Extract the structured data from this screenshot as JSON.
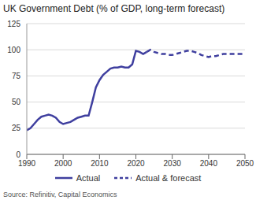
{
  "chart_data": {
    "type": "line",
    "title": "UK Government Debt (% of GDP, long-term forecast)",
    "source": "Source: Refinitiv, Capital Economics",
    "x": [
      1990,
      1991,
      1992,
      1993,
      1994,
      1995,
      1996,
      1997,
      1998,
      1999,
      2000,
      2001,
      2002,
      2003,
      2004,
      2005,
      2006,
      2007,
      2008,
      2009,
      2010,
      2011,
      2012,
      2013,
      2014,
      2015,
      2016,
      2017,
      2018,
      2019,
      2020,
      2021,
      2022,
      2023,
      2024,
      2025,
      2026,
      2027,
      2028,
      2029,
      2030,
      2031,
      2032,
      2033,
      2034,
      2035,
      2036,
      2037,
      2038,
      2039,
      2040,
      2041,
      2042,
      2043,
      2044,
      2045,
      2046,
      2047,
      2048,
      2049,
      2050
    ],
    "series": [
      {
        "name": "Actual",
        "color": "#3f3f9f",
        "line_style": "solid",
        "values": [
          23,
          25,
          29,
          33,
          36,
          37,
          38,
          37,
          35,
          31,
          29,
          30,
          31,
          33,
          35,
          36,
          37,
          37,
          50,
          64,
          71,
          76,
          79,
          82,
          83,
          83,
          84,
          83,
          83,
          86,
          99,
          98,
          96,
          98,
          null,
          null,
          null,
          null,
          null,
          null,
          null,
          null,
          null,
          null,
          null,
          null,
          null,
          null,
          null,
          null,
          null,
          null,
          null,
          null,
          null,
          null,
          null,
          null,
          null,
          null,
          null
        ]
      },
      {
        "name": "Actual & forecast",
        "color": "#3f3f9f",
        "line_style": "dashed",
        "values": [
          null,
          null,
          null,
          null,
          null,
          null,
          null,
          null,
          null,
          null,
          null,
          null,
          null,
          null,
          null,
          null,
          null,
          null,
          null,
          null,
          null,
          null,
          null,
          null,
          null,
          null,
          null,
          null,
          null,
          null,
          null,
          null,
          null,
          98,
          100,
          98,
          97,
          96,
          96,
          95,
          95,
          96,
          97,
          98,
          99,
          99,
          98,
          97,
          95,
          94,
          93,
          94,
          94,
          95,
          96,
          96,
          96,
          96,
          96,
          96,
          96
        ]
      }
    ],
    "xlim": [
      1990,
      2050
    ],
    "xticks": [
      1990,
      2000,
      2010,
      2020,
      2030,
      2040,
      2050
    ],
    "ylim": [
      0,
      125
    ],
    "yticks": [
      0,
      25,
      50,
      75,
      100,
      125
    ],
    "grid": true,
    "legend": "bottom"
  }
}
